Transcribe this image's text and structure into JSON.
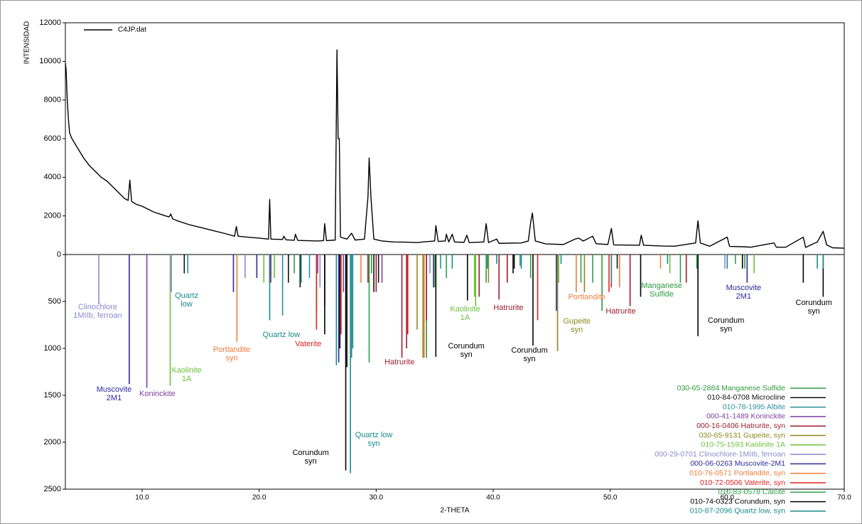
{
  "chart_data": {
    "type": "xrd",
    "x_label": "2-THETA",
    "y_label": "INTENSIDAD",
    "xlim": [
      3.44,
      70
    ],
    "xticks": [
      {
        "value": 10,
        "label": "10.0"
      },
      {
        "value": 20,
        "label": "20.0"
      },
      {
        "value": 30,
        "label": "30.0"
      },
      {
        "value": 40,
        "label": "40.0"
      },
      {
        "value": 50,
        "label": "50.0"
      },
      {
        "value": 60,
        "label": "60.0"
      },
      {
        "value": 70,
        "label": "70.0"
      }
    ],
    "ylim": [
      0,
      12000
    ],
    "yticks": [
      0,
      2000,
      4000,
      6000,
      8000,
      10000,
      12000
    ],
    "y2lim": [
      0,
      2500
    ],
    "y2ticks": [
      500,
      1000,
      1500,
      2000,
      2500
    ],
    "series": [
      {
        "name": "C4JP.dat",
        "color": "#000000",
        "x": [
          3.44,
          3.5,
          3.6,
          3.7,
          3.8,
          4.0,
          4.5,
          5.0,
          5.5,
          6.0,
          6.5,
          7.0,
          7.5,
          8.0,
          8.5,
          8.8,
          8.95,
          9.1,
          9.5,
          10.0,
          10.5,
          11.0,
          11.5,
          12.0,
          12.3,
          12.45,
          12.6,
          13.0,
          14.0,
          15.0,
          16.0,
          17.0,
          17.9,
          18.05,
          18.2,
          19.0,
          20.0,
          20.8,
          20.9,
          21.0,
          22.0,
          22.1,
          22.3,
          23.0,
          23.1,
          23.3,
          24.0,
          25.0,
          25.5,
          25.6,
          25.75,
          26.5,
          26.65,
          26.75,
          26.85,
          26.95,
          27.5,
          27.9,
          28.2,
          29.0,
          29.3,
          29.4,
          29.55,
          29.8,
          30.5,
          31.5,
          32.5,
          33.5,
          34.0,
          35.0,
          35.1,
          35.3,
          35.9,
          36.0,
          36.2,
          36.5,
          36.7,
          37.5,
          37.75,
          37.95,
          39.2,
          39.4,
          39.6,
          40.3,
          40.5,
          42.4,
          43.0,
          43.2,
          43.35,
          43.6,
          44.5,
          46.0,
          47.0,
          47.3,
          47.7,
          48.5,
          48.8,
          49.8,
          50.1,
          50.3,
          52.5,
          52.65,
          52.85,
          54.5,
          55.5,
          57.3,
          57.5,
          57.7,
          58.5,
          60.0,
          60.2,
          61.5,
          62.0,
          64.0,
          64.2,
          65.0,
          66.5,
          66.7,
          67.7,
          68.2,
          68.5,
          69.0,
          70.0
        ],
        "values": [
          9900,
          9600,
          8000,
          7000,
          6300,
          6000,
          5500,
          5000,
          4600,
          4300,
          4000,
          3800,
          3500,
          3200,
          2900,
          2800,
          3850,
          2750,
          2600,
          2500,
          2350,
          2200,
          2100,
          2000,
          1950,
          2100,
          1850,
          1750,
          1550,
          1400,
          1250,
          1100,
          950,
          1450,
          950,
          900,
          850,
          800,
          2850,
          800,
          780,
          950,
          760,
          740,
          1050,
          730,
          720,
          700,
          720,
          1600,
          720,
          750,
          10600,
          6000,
          6000,
          900,
          800,
          1100,
          750,
          800,
          3000,
          5000,
          3000,
          800,
          700,
          650,
          640,
          620,
          650,
          700,
          1500,
          680,
          700,
          1050,
          650,
          1050,
          650,
          630,
          1000,
          620,
          650,
          1600,
          620,
          800,
          580,
          600,
          700,
          1650,
          2150,
          700,
          550,
          520,
          800,
          850,
          700,
          950,
          560,
          520,
          1350,
          500,
          480,
          1000,
          480,
          440,
          430,
          600,
          1750,
          600,
          430,
          900,
          420,
          400,
          380,
          600,
          380,
          380,
          900,
          370,
          650,
          1200,
          500,
          350,
          330
        ]
      },
      {
        "name": "030-65-2884 Manganese Sulfide",
        "color": "#2e9a3e",
        "axis": "y2",
        "x": [
          29.6,
          34.3,
          49.3,
          56.0,
          61.5
        ],
        "values": [
          200,
          1100,
          600,
          300,
          150
        ]
      },
      {
        "name": "010-84-0708 Microcline",
        "color": "#111111",
        "axis": "y2",
        "x": [
          13.6,
          21.0,
          22.5,
          23.5,
          25.6,
          26.9,
          27.5,
          29.8,
          30.2,
          41.8,
          50.6
        ],
        "values": [
          200,
          250,
          300,
          350,
          550,
          1000,
          1200,
          400,
          300,
          150,
          150
        ]
      },
      {
        "name": "010-78-1995 Albite",
        "color": "#2a8f9a",
        "axis": "y2",
        "x": [
          13.9,
          22.0,
          23.6,
          24.3,
          27.9,
          28.0,
          35.5,
          42.3
        ],
        "values": [
          200,
          650,
          300,
          250,
          1100,
          1000,
          150,
          120
        ]
      },
      {
        "name": "000-41-1489 Koninckite",
        "color": "#7b3fa0",
        "axis": "y2",
        "x": [
          10.4,
          21.0,
          25.0,
          27.2,
          30.5
        ],
        "values": [
          1420,
          300,
          200,
          400,
          300
        ]
      },
      {
        "name": "000-16-0406 Hatrurite, syn",
        "color": "#9b1c2e",
        "axis": "y2",
        "x": [
          29.3,
          30.0,
          32.2,
          32.6,
          34.3,
          38.8,
          40.5,
          41.2,
          51.7,
          56.5
        ],
        "values": [
          300,
          400,
          1100,
          1000,
          700,
          450,
          480,
          300,
          550,
          300
        ]
      },
      {
        "name": "030-65-9131 Gupeite, syn",
        "color": "#8a8a1e",
        "axis": "y2",
        "x": [
          33.5,
          34.0,
          39.6,
          45.5,
          47.8,
          57.5
        ],
        "values": [
          800,
          1100,
          300,
          1030,
          400,
          200
        ]
      },
      {
        "name": "010-75-1593 Kaolinite 1A",
        "color": "#6fbf3a",
        "axis": "y2",
        "x": [
          12.4,
          20.4,
          21.3,
          24.9,
          35.0,
          38.4,
          38.5,
          45.6,
          55.1,
          62.3
        ],
        "values": [
          1400,
          300,
          250,
          600,
          350,
          450,
          550,
          300,
          200,
          200
        ]
      },
      {
        "name": "000-29-0701 Clinochlore-1MIIb, ferroan",
        "color": "#8a8ad0",
        "axis": "y2",
        "x": [
          6.3,
          12.5,
          18.8,
          25.2,
          34.6,
          45.4,
          59.8
        ],
        "values": [
          530,
          400,
          250,
          350,
          200,
          150,
          150
        ]
      },
      {
        "name": "000-06-0263 Muscovite-2M1",
        "color": "#2a2a9a",
        "axis": "y2",
        "x": [
          8.9,
          17.8,
          19.8,
          26.8,
          34.9,
          45.4,
          61.7
        ],
        "values": [
          1380,
          400,
          250,
          1150,
          350,
          600,
          300
        ]
      },
      {
        "name": "010-76-0571 Portlandite, syn",
        "color": "#f07c3a",
        "axis": "y2",
        "x": [
          18.1,
          28.7,
          34.1,
          47.1,
          50.8,
          54.3
        ],
        "values": [
          930,
          300,
          1100,
          400,
          350,
          150
        ]
      },
      {
        "name": "010-72-0506 Vaterite, syn",
        "color": "#e02020",
        "axis": "y2",
        "x": [
          20.9,
          24.9,
          27.0,
          32.7,
          43.8,
          49.9,
          50.1
        ],
        "values": [
          300,
          800,
          850,
          850,
          700,
          400,
          350
        ]
      },
      {
        "name": "010-83-0578 Calcite",
        "color": "#2f9f4a",
        "axis": "y2",
        "x": [
          23.0,
          29.4,
          36.0,
          39.4,
          43.2,
          47.5,
          48.5,
          57.4,
          60.7
        ],
        "values": [
          200,
          1150,
          250,
          300,
          250,
          300,
          300,
          150,
          100
        ]
      },
      {
        "name": "010-74-0323 Corundum, syn",
        "color": "#000000",
        "axis": "y2",
        "x": [
          25.6,
          27.4,
          35.1,
          37.8,
          41.7,
          43.4,
          52.6,
          57.5,
          61.3,
          66.5,
          68.2
        ],
        "values": [
          850,
          2300,
          1090,
          490,
          200,
          970,
          450,
          870,
          150,
          300,
          450
        ]
      },
      {
        "name": "010-87-2096 Quartz low, syn",
        "color": "#1a8a8a",
        "axis": "y2",
        "x": [
          20.9,
          26.6,
          27.8,
          36.5,
          39.5,
          40.3,
          42.4,
          45.8,
          50.1,
          54.9,
          60.0,
          67.7,
          68.2
        ],
        "values": [
          700,
          1180,
          2330,
          150,
          150,
          100,
          150,
          100,
          300,
          100,
          150,
          150,
          150
        ]
      }
    ],
    "annotations": [
      {
        "lines": [
          "Clinochlore",
          "1MIIb, ferroan"
        ],
        "x": 6.2,
        "y": 560,
        "series": 8
      },
      {
        "lines": [
          "Muscovite",
          "2M1"
        ],
        "x": 7.6,
        "y": 1440,
        "series": 9
      },
      {
        "lines": [
          "Koninckite"
        ],
        "x": 11.3,
        "y": 1485,
        "series": 4
      },
      {
        "lines": [
          "Quartz",
          "low"
        ],
        "x": 13.8,
        "y": 440,
        "series": 14
      },
      {
        "lines": [
          "Kaolinite",
          "1A"
        ],
        "x": 13.8,
        "y": 1235,
        "series": 7
      },
      {
        "lines": [
          "Portlandite",
          "syn"
        ],
        "x": 17.65,
        "y": 1015,
        "series": 10
      },
      {
        "lines": [
          "Quartz low"
        ],
        "x": 21.9,
        "y": 856,
        "series": 14
      },
      {
        "lines": [
          "Vaterite"
        ],
        "x": 24.2,
        "y": 955,
        "series": 11
      },
      {
        "lines": [
          "Corundum",
          "syn"
        ],
        "x": 24.4,
        "y": 2115,
        "series": 13
      },
      {
        "lines": [
          "Quartz low",
          "syn"
        ],
        "x": 29.8,
        "y": 1925,
        "series": 14
      },
      {
        "lines": [
          "Hatrurite"
        ],
        "x": 32.0,
        "y": 1150,
        "series": 5
      },
      {
        "lines": [
          "Corundum",
          "syn"
        ],
        "x": 37.7,
        "y": 977,
        "series": 13
      },
      {
        "lines": [
          "Kaolinite",
          "1A"
        ],
        "x": 37.6,
        "y": 583,
        "series": 7
      },
      {
        "lines": [
          "Hatrurite"
        ],
        "x": 41.3,
        "y": 568,
        "series": 5
      },
      {
        "lines": [
          "Corundum",
          "syn"
        ],
        "x": 43.1,
        "y": 1023,
        "series": 13
      },
      {
        "lines": [
          "Gupeite",
          "syn"
        ],
        "x": 47.15,
        "y": 712,
        "series": 6
      },
      {
        "lines": [
          "Portlandite"
        ],
        "x": 48.0,
        "y": 455,
        "series": 10
      },
      {
        "lines": [
          "Hatrurite"
        ],
        "x": 50.9,
        "y": 606,
        "series": 5
      },
      {
        "lines": [
          "Manganese",
          "Sulfide"
        ],
        "x": 54.4,
        "y": 333,
        "series": 1
      },
      {
        "lines": [
          "Corundum",
          "syn"
        ],
        "x": 59.9,
        "y": 705,
        "series": 13
      },
      {
        "lines": [
          "Muscovite",
          "2M1"
        ],
        "x": 61.4,
        "y": 356,
        "series": 9
      },
      {
        "lines": [
          "Corundum",
          "syn"
        ],
        "x": 67.4,
        "y": 515,
        "series": 13
      }
    ]
  }
}
